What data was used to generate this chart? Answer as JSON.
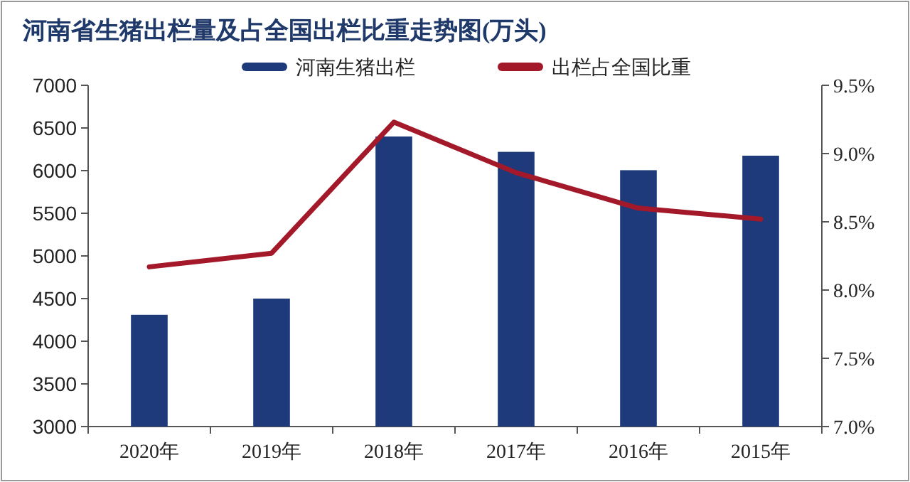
{
  "chart_data": {
    "type": "bar",
    "title": "河南省生猪出栏量及占全国出栏比重走势图(万头)",
    "categories": [
      "2020年",
      "2019年",
      "2018年",
      "2017年",
      "2016年",
      "2015年"
    ],
    "series": [
      {
        "name": "河南生猪出栏",
        "color": "#1f3a7a",
        "values": [
          4310,
          4500,
          6400,
          6220,
          6005,
          6175
        ]
      },
      {
        "name": "出栏占全国比重",
        "type": "line",
        "axis": "y2",
        "color": "#a3192a",
        "values": [
          8.17,
          8.27,
          9.23,
          8.86,
          8.6,
          8.52
        ]
      }
    ],
    "ylim": [
      3000,
      7000
    ],
    "yticks": [
      3000,
      3500,
      4000,
      4500,
      5000,
      5500,
      6000,
      6500,
      7000
    ],
    "y2lim": [
      7.0,
      9.5
    ],
    "y2ticks": [
      {
        "value": 7.0,
        "label": "7.0%"
      },
      {
        "value": 7.5,
        "label": "7.5%"
      },
      {
        "value": 8.0,
        "label": "8.0%"
      },
      {
        "value": 8.5,
        "label": "8.5%"
      },
      {
        "value": 9.0,
        "label": "9.0%"
      },
      {
        "value": 9.5,
        "label": "9.5%"
      }
    ],
    "grid": false,
    "legend": "top",
    "marker": "none"
  }
}
